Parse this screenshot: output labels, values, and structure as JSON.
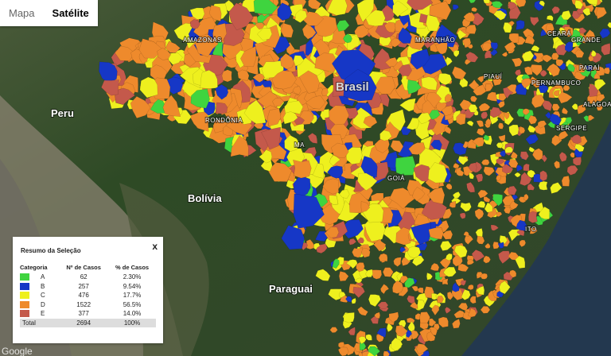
{
  "map_controls": {
    "tabs": [
      "Mapa",
      "Satélite"
    ]
  },
  "place_labels": {
    "countries": [
      "Peru",
      "Bolívia",
      "Paraguai",
      "Brasil"
    ],
    "states": [
      "AMAZONAS",
      "RONDÔNIA",
      "MARANHÃO",
      "PIAUÍ",
      "GRANDE",
      "PERNAMBUCO",
      "ALAGOAS",
      "SERGIPE",
      "GOIÁ",
      "MA",
      "ITO",
      "PARAÍ",
      "CEARÁ"
    ]
  },
  "summary": {
    "title": "Resumo da Seleção",
    "close": "x",
    "columns": [
      "Categoria",
      "Nº de Casos",
      "% de Casos"
    ],
    "rows": [
      {
        "category": "A",
        "cases": 62,
        "percent": "2.30%",
        "color": "#3fd43f"
      },
      {
        "category": "B",
        "cases": 257,
        "percent": "9.54%",
        "color": "#1637c6"
      },
      {
        "category": "C",
        "cases": 476,
        "percent": "17.7%",
        "color": "#eef01e"
      },
      {
        "category": "D",
        "cases": 1522,
        "percent": "56.5%",
        "color": "#ee8a2c"
      },
      {
        "category": "E",
        "cases": 377,
        "percent": "14.0%",
        "color": "#c4594b"
      }
    ],
    "total": {
      "label": "Total",
      "cases": 2694,
      "percent": "100%"
    }
  },
  "attribution": "Google"
}
